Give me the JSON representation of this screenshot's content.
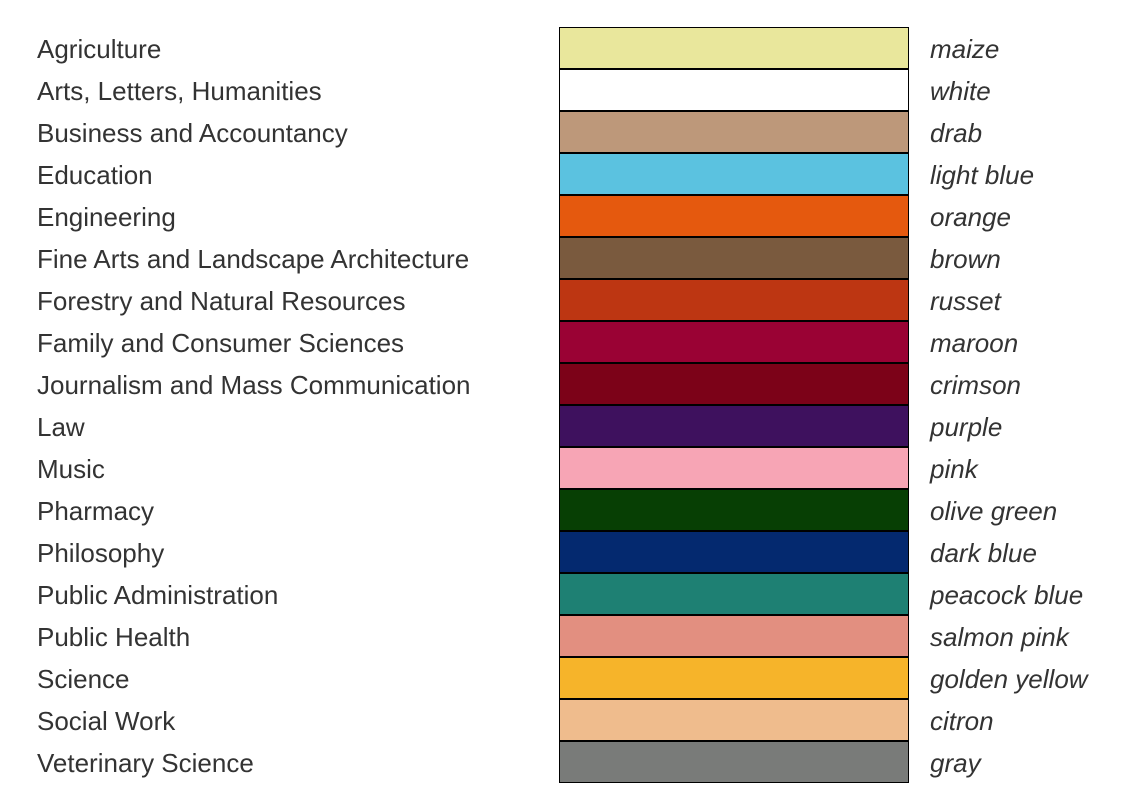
{
  "rows": [
    {
      "field": "Agriculture",
      "color_name": "maize",
      "hex": "#e9e79c"
    },
    {
      "field": "Arts, Letters, Humanities",
      "color_name": "white",
      "hex": "#ffffff"
    },
    {
      "field": "Business and Accountancy",
      "color_name": "drab",
      "hex": "#bd987a"
    },
    {
      "field": "Education",
      "color_name": "light blue",
      "hex": "#5bc2e0"
    },
    {
      "field": "Engineering",
      "color_name": "orange",
      "hex": "#e5590e"
    },
    {
      "field": "Fine Arts and Landscape Architecture",
      "color_name": "brown",
      "hex": "#7a5a3e"
    },
    {
      "field": "Forestry and Natural Resources",
      "color_name": "russet",
      "hex": "#bd3612"
    },
    {
      "field": "Family and Consumer Sciences",
      "color_name": "maroon",
      "hex": "#9a0234"
    },
    {
      "field": "Journalism and Mass Communication",
      "color_name": "crimson",
      "hex": "#7c0218"
    },
    {
      "field": "Law",
      "color_name": "purple",
      "hex": "#3e115e"
    },
    {
      "field": "Music",
      "color_name": "pink",
      "hex": "#f7a5b5"
    },
    {
      "field": "Pharmacy",
      "color_name": "olive green",
      "hex": "#073f04"
    },
    {
      "field": "Philosophy",
      "color_name": "dark blue",
      "hex": "#04296f"
    },
    {
      "field": "Public Administration",
      "color_name": "peacock blue",
      "hex": "#1e8073"
    },
    {
      "field": "Public Health",
      "color_name": "salmon pink",
      "hex": "#e28f80"
    },
    {
      "field": "Science",
      "color_name": "golden yellow",
      "hex": "#f6b42a"
    },
    {
      "field": "Social Work",
      "color_name": "citron",
      "hex": "#efbc8d"
    },
    {
      "field": "Veterinary Science",
      "color_name": "gray",
      "hex": "#797b79"
    }
  ]
}
